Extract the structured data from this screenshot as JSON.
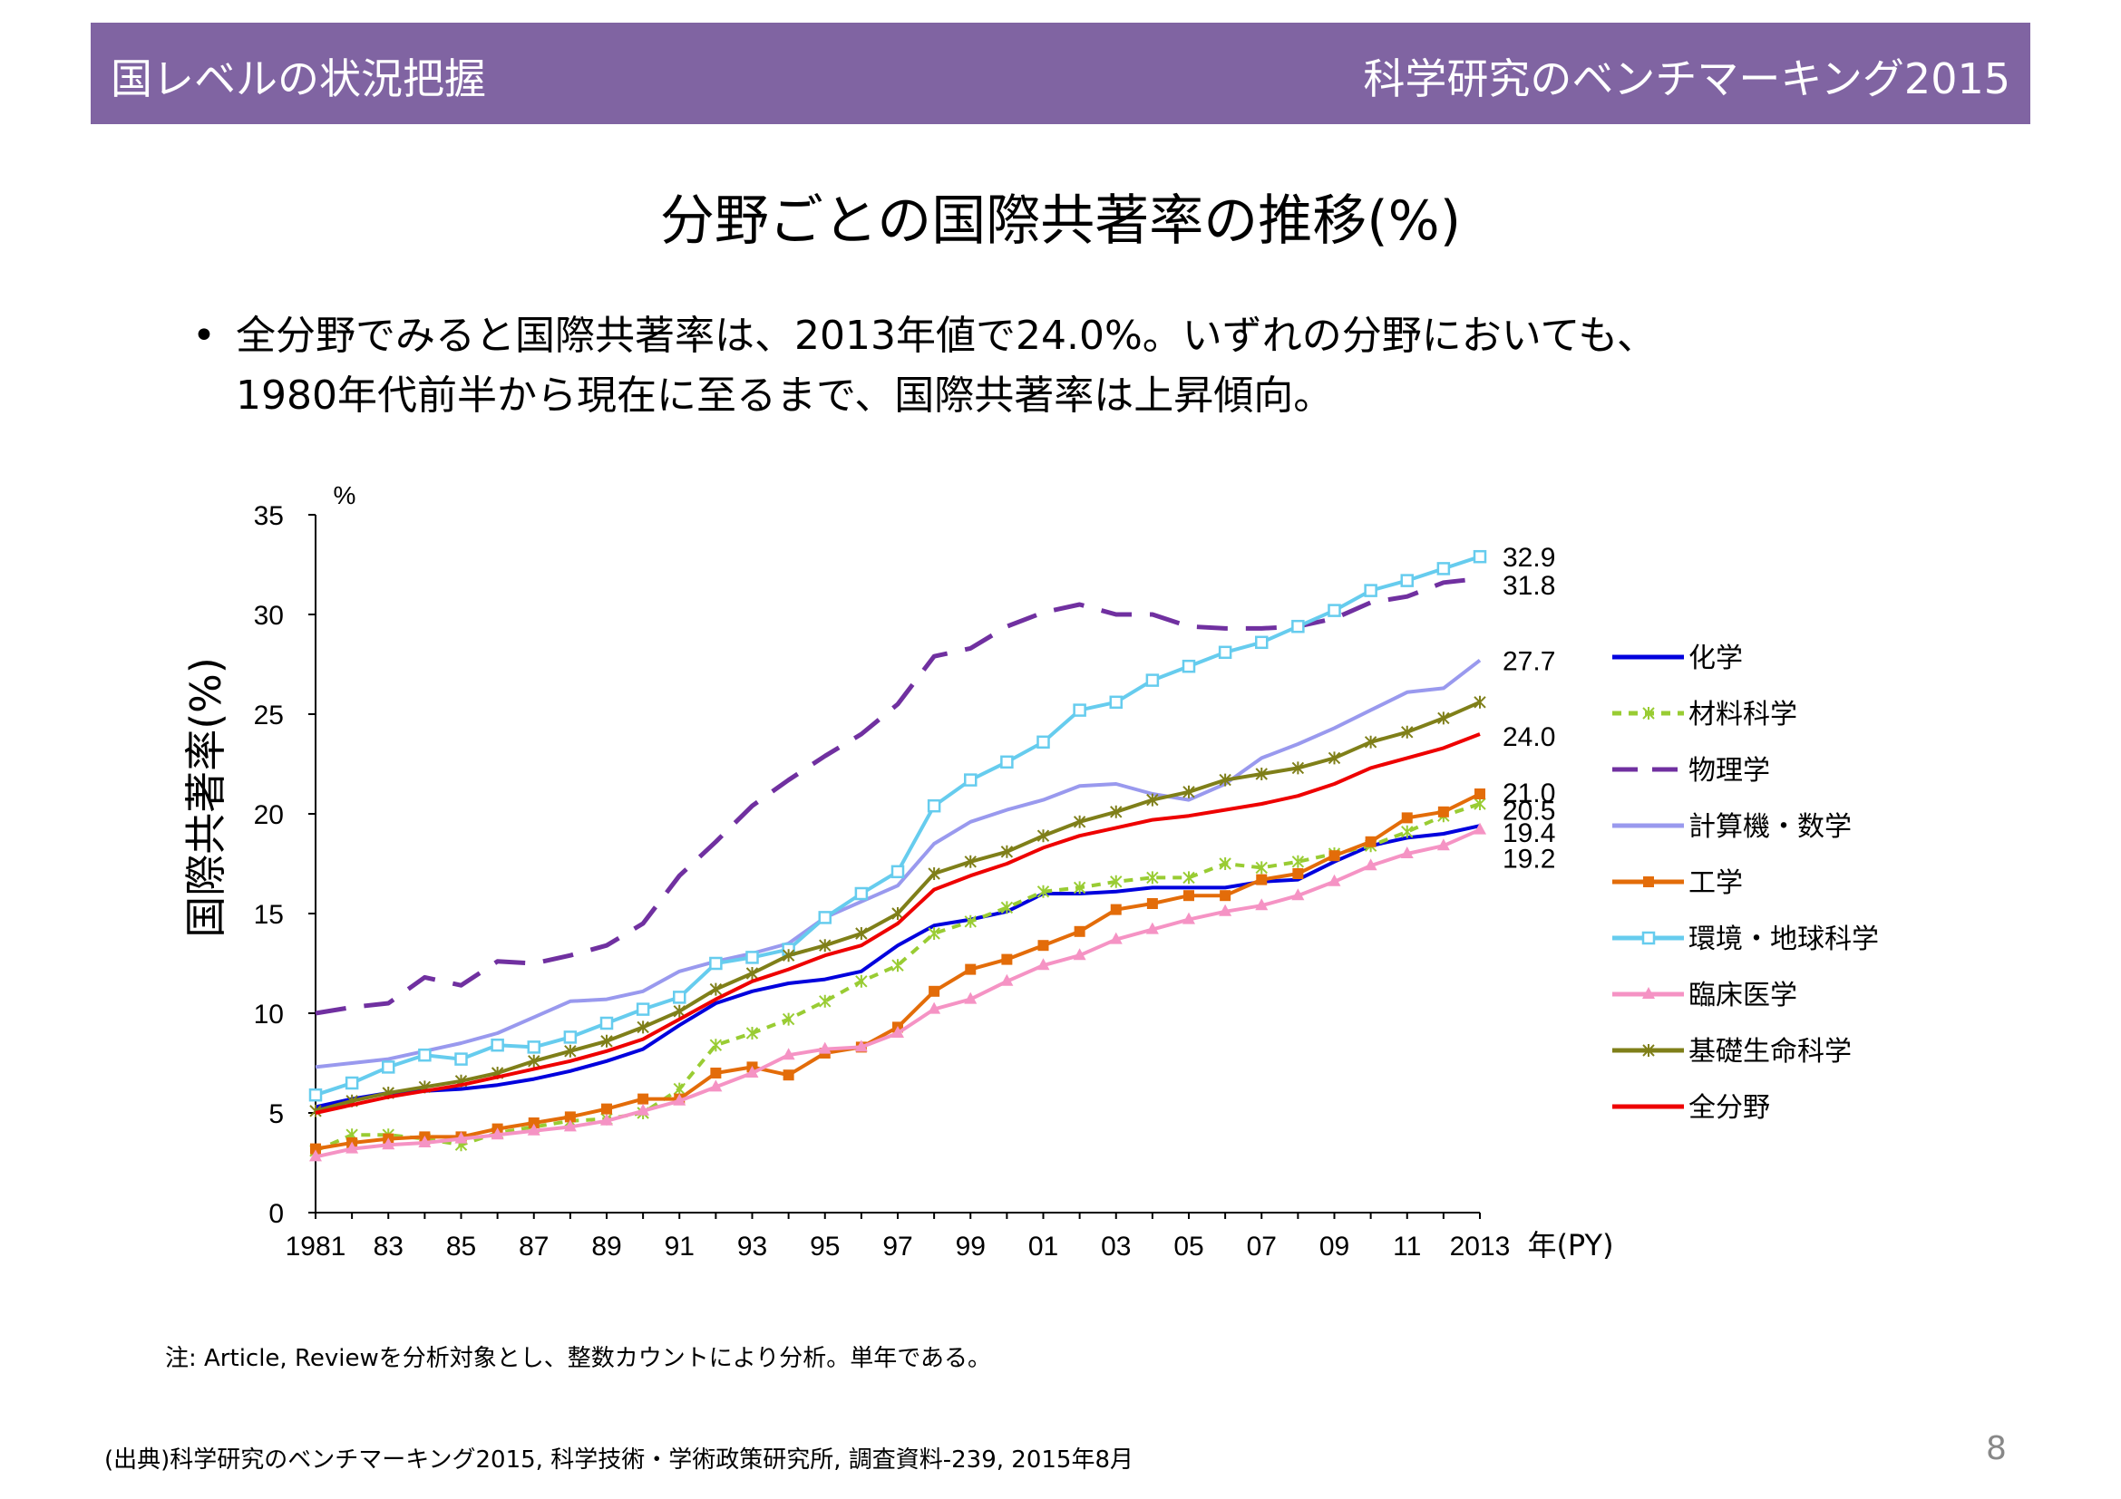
{
  "header": {
    "left": "国レベルの状況把握",
    "right": "科学研究のベンチマーキング2015"
  },
  "slide_title": "分野ごとの国際共著率の推移(%)",
  "bullet": {
    "line1": "全分野でみると国際共著率は、2013年値で24.0%。いずれの分野においても、",
    "line2": "1980年代前半から現在に至るまで、国際共著率は上昇傾向。"
  },
  "note": "注: Article, Reviewを分析対象とし、整数カウントにより分析。単年である。",
  "source": "(出典)科学研究のベンチマーキング2015, 科学技術・学術政策研究所, 調査資料-239, 2015年8月",
  "page_number": "8",
  "chart_data": {
    "type": "line",
    "ylabel": "国際共著率(%)",
    "y_unit": "%",
    "xlabel": "年(PY)",
    "ylim": [
      0,
      35
    ],
    "yticks": [
      0,
      5,
      10,
      15,
      20,
      25,
      30,
      35
    ],
    "x": [
      1981,
      1982,
      1983,
      1984,
      1985,
      1986,
      1987,
      1988,
      1989,
      1990,
      1991,
      1992,
      1993,
      1994,
      1995,
      1996,
      1997,
      1998,
      1999,
      2000,
      2001,
      2002,
      2003,
      2004,
      2005,
      2006,
      2007,
      2008,
      2009,
      2010,
      2011,
      2012,
      2013
    ],
    "xtick_labels": [
      "1981",
      "83",
      "85",
      "87",
      "89",
      "91",
      "93",
      "95",
      "97",
      "99",
      "01",
      "03",
      "05",
      "07",
      "09",
      "11",
      "2013"
    ],
    "series": [
      {
        "name": "化学",
        "color": "#0000dd",
        "style": "solid",
        "marker": "none",
        "values": [
          5.3,
          5.7,
          6.0,
          6.1,
          6.2,
          6.4,
          6.7,
          7.1,
          7.6,
          8.2,
          9.4,
          10.5,
          11.1,
          11.5,
          11.7,
          12.1,
          13.4,
          14.4,
          14.7,
          15.1,
          16.0,
          16.0,
          16.1,
          16.3,
          16.3,
          16.3,
          16.6,
          16.7,
          17.6,
          18.4,
          18.8,
          19.0,
          19.4
        ]
      },
      {
        "name": "材料科学",
        "color": "#99cc33",
        "style": "dashed",
        "marker": "star",
        "values": [
          3.1,
          3.9,
          3.9,
          3.7,
          3.4,
          4.0,
          4.3,
          4.6,
          4.7,
          5.0,
          6.2,
          8.4,
          9.0,
          9.7,
          10.6,
          11.6,
          12.4,
          14.0,
          14.6,
          15.3,
          16.1,
          16.3,
          16.6,
          16.8,
          16.8,
          17.5,
          17.3,
          17.6,
          18.0,
          18.4,
          19.1,
          19.9,
          20.5
        ]
      },
      {
        "name": "物理学",
        "color": "#7030a0",
        "style": "longdash",
        "marker": "none",
        "values": [
          10.0,
          10.3,
          10.5,
          11.8,
          11.4,
          12.6,
          12.5,
          12.9,
          13.4,
          14.5,
          16.9,
          18.6,
          20.4,
          21.7,
          22.9,
          24.0,
          25.5,
          27.9,
          28.3,
          29.4,
          30.1,
          30.5,
          30.0,
          30.0,
          29.4,
          29.3,
          29.3,
          29.4,
          29.8,
          30.6,
          30.9,
          31.6,
          31.8
        ]
      },
      {
        "name": "計算機・数学",
        "color": "#9999ee",
        "style": "solid",
        "marker": "none",
        "values": [
          7.3,
          7.5,
          7.7,
          8.1,
          8.5,
          9.0,
          9.8,
          10.6,
          10.7,
          11.1,
          12.1,
          12.6,
          13.0,
          13.5,
          14.8,
          15.6,
          16.4,
          18.5,
          19.6,
          20.2,
          20.7,
          21.4,
          21.5,
          21.0,
          20.7,
          21.5,
          22.8,
          23.5,
          24.3,
          25.2,
          26.1,
          26.3,
          27.7
        ]
      },
      {
        "name": "工学",
        "color": "#e36c09",
        "style": "solid",
        "marker": "square",
        "values": [
          3.2,
          3.5,
          3.7,
          3.8,
          3.8,
          4.2,
          4.5,
          4.8,
          5.2,
          5.7,
          5.7,
          7.0,
          7.3,
          6.9,
          8.0,
          8.3,
          9.3,
          11.1,
          12.2,
          12.7,
          13.4,
          14.1,
          15.2,
          15.5,
          15.9,
          15.9,
          16.7,
          17.0,
          17.9,
          18.6,
          19.8,
          20.1,
          21.0
        ]
      },
      {
        "name": "環境・地球科学",
        "color": "#66ccee",
        "style": "solid",
        "marker": "square-open",
        "values": [
          5.9,
          6.5,
          7.3,
          7.9,
          7.7,
          8.4,
          8.3,
          8.8,
          9.5,
          10.2,
          10.8,
          12.5,
          12.8,
          13.2,
          14.8,
          16.0,
          17.1,
          20.4,
          21.7,
          22.6,
          23.6,
          25.2,
          25.6,
          26.7,
          27.4,
          28.1,
          28.6,
          29.4,
          30.2,
          31.2,
          31.7,
          32.3,
          32.9
        ]
      },
      {
        "name": "臨床医学",
        "color": "#f593c4",
        "style": "solid",
        "marker": "triangle",
        "values": [
          2.8,
          3.2,
          3.4,
          3.5,
          3.7,
          3.9,
          4.1,
          4.3,
          4.6,
          5.1,
          5.6,
          6.3,
          7.0,
          7.9,
          8.2,
          8.3,
          9.0,
          10.2,
          10.7,
          11.6,
          12.4,
          12.9,
          13.7,
          14.2,
          14.7,
          15.1,
          15.4,
          15.9,
          16.6,
          17.4,
          18.0,
          18.4,
          19.2
        ]
      },
      {
        "name": "基礎生命科学",
        "color": "#7f7f19",
        "style": "solid",
        "marker": "star",
        "values": [
          5.1,
          5.6,
          6.0,
          6.3,
          6.6,
          7.0,
          7.6,
          8.1,
          8.6,
          9.3,
          10.1,
          11.2,
          12.0,
          12.9,
          13.4,
          14.0,
          15.0,
          17.0,
          17.6,
          18.1,
          18.9,
          19.6,
          20.1,
          20.7,
          21.1,
          21.7,
          22.0,
          22.3,
          22.8,
          23.6,
          24.1,
          24.8,
          25.6
        ]
      },
      {
        "name": "全分野",
        "color": "#ee0000",
        "style": "solid",
        "marker": "none",
        "values": [
          5.0,
          5.4,
          5.8,
          6.1,
          6.4,
          6.8,
          7.2,
          7.6,
          8.1,
          8.7,
          9.7,
          10.7,
          11.6,
          12.2,
          12.9,
          13.4,
          14.5,
          16.2,
          16.9,
          17.5,
          18.3,
          18.9,
          19.3,
          19.7,
          19.9,
          20.2,
          20.5,
          20.9,
          21.5,
          22.3,
          22.8,
          23.3,
          24.0
        ]
      }
    ],
    "end_labels": [
      "32.9",
      "31.8",
      "27.7",
      "24.0",
      "21.0",
      "20.5",
      "19.4",
      "19.2"
    ]
  }
}
